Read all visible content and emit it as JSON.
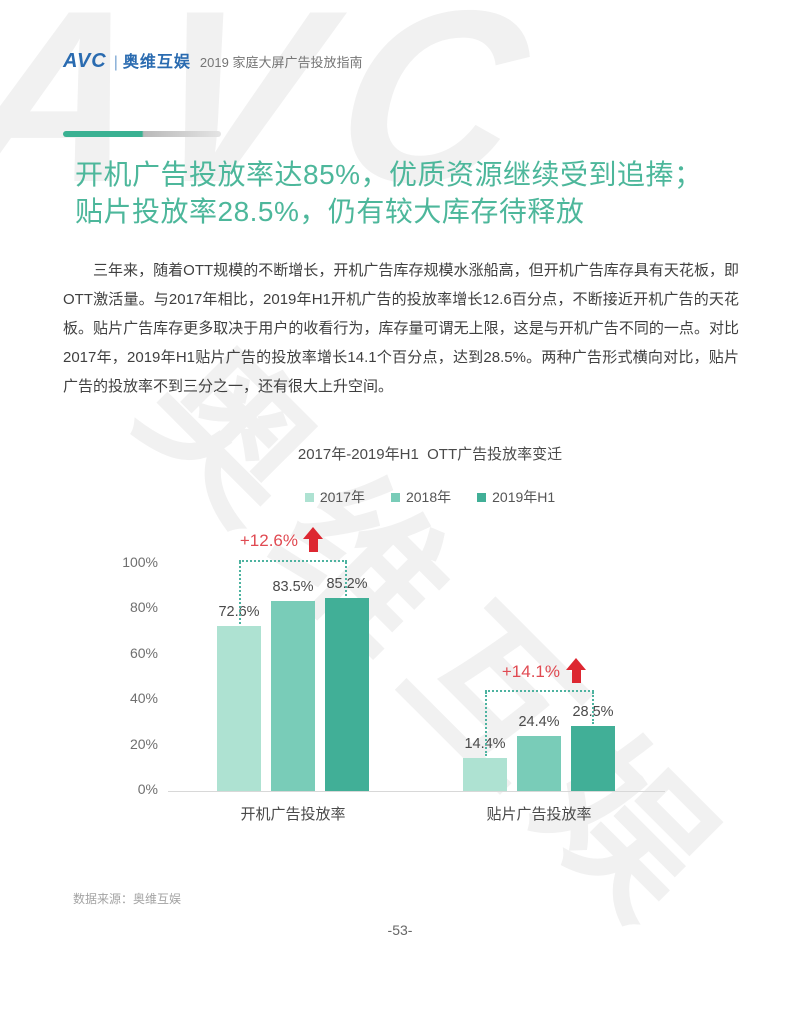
{
  "header": {
    "logo_avc": "AVC",
    "logo_divider": "|",
    "logo_brand": "奥维互娱",
    "subtitle": "2019 家庭大屏广告投放指南"
  },
  "headline": {
    "line1": "开机广告投放率达85%，优质资源继续受到追捧；",
    "line2": "贴片投放率28.5%，仍有较大库存待释放"
  },
  "paragraph": "三年来，随着OTT规模的不断增长，开机广告库存规模水涨船高，但开机广告库存具有天花板，即OTT激活量。与2017年相比，2019年H1开机广告的投放率增长12.6百分点，不断接近开机广告的天花板。贴片广告库存更多取决于用户的收看行为，库存量可谓无上限，这是与开机广告不同的一点。对比2017年，2019年H1贴片广告的投放率增长14.1个百分点，达到28.5%。两种广告形式横向对比，贴片广告的投放率不到三分之一，还有很大上升空间。",
  "chart_data": {
    "type": "bar",
    "title": "2017年-2019年H1  OTT广告投放率变迁",
    "categories": [
      "开机广告投放率",
      "贴片广告投放率"
    ],
    "series": [
      {
        "name": "2017年",
        "color": "#aee2d2",
        "values": [
          72.6,
          14.4
        ]
      },
      {
        "name": "2018年",
        "color": "#79ccb8",
        "values": [
          83.5,
          24.4
        ]
      },
      {
        "name": "2019年H1",
        "color": "#41af97",
        "values": [
          85.2,
          28.5
        ]
      }
    ],
    "value_suffix": "%",
    "y_ticks": [
      0,
      20,
      40,
      60,
      80,
      100
    ],
    "y_tick_suffix": "%",
    "ylim": [
      0,
      100
    ],
    "grid": false,
    "legend_position": "top",
    "annotations": [
      {
        "category": "开机广告投放率",
        "label": "+12.6%",
        "color": "#e04a52"
      },
      {
        "category": "贴片广告投放率",
        "label": "+14.1%",
        "color": "#e04a52"
      }
    ]
  },
  "colors": {
    "accent_green": "#3ab192",
    "headline_green": "#4db79b",
    "logo_blue": "#2a6bb0",
    "annotation_red": "#dd2731",
    "bracket_teal": "#4db3a0"
  },
  "watermark": {
    "avc": "AVC",
    "brand": "奥维互娱"
  },
  "footer": {
    "source": "数据来源：奥维互娱",
    "page": "-53-"
  }
}
